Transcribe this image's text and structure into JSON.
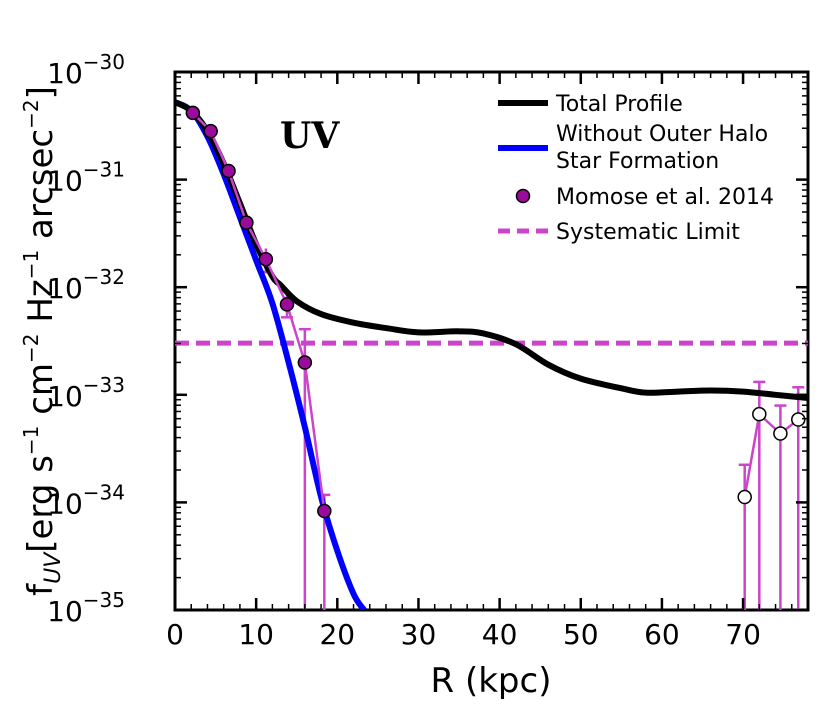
{
  "chart_data": {
    "type": "line",
    "xlabel": "R (kpc)",
    "ylabel_base": "f",
    "ylabel_sub": "UV",
    "ylabel_rest": " [erg s",
    "ylabel_parts": [
      "[erg s",
      "−1",
      " cm",
      "−2",
      " Hz",
      "−1",
      " arcsec",
      "−2",
      "]"
    ],
    "yscale": "log",
    "xlim": [
      0,
      78
    ],
    "ylim_exp": [
      -35,
      -30
    ],
    "x_ticks": [
      "0",
      "10",
      "20",
      "30",
      "40",
      "50",
      "60",
      "70"
    ],
    "x_tick_values": [
      0,
      10,
      20,
      30,
      40,
      50,
      60,
      70
    ],
    "y_ticks": [
      {
        "exp": -30,
        "base": "10",
        "sup": "−30"
      },
      {
        "exp": -31,
        "base": "10",
        "sup": "−31"
      },
      {
        "exp": -32,
        "base": "10",
        "sup": "−32"
      },
      {
        "exp": -33,
        "base": "10",
        "sup": "−33"
      },
      {
        "exp": -34,
        "base": "10",
        "sup": "−34"
      },
      {
        "exp": -35,
        "base": "10",
        "sup": "−35"
      }
    ],
    "annotation": "UV",
    "legend": [
      {
        "label": "Total Profile",
        "style": "line",
        "color": "#000000"
      },
      {
        "label": "Without Outer Halo",
        "label2": "Star Formation",
        "style": "line",
        "color": "#0000ff"
      },
      {
        "label": "Momose et al. 2014",
        "style": "marker",
        "color": "#9b0a9b"
      },
      {
        "label": "Systematic Limit",
        "style": "dashed",
        "color": "#cc44cc"
      }
    ],
    "series": [
      {
        "name": "Total Profile",
        "color": "#000000",
        "x": [
          0,
          2,
          4,
          6,
          8,
          10,
          12,
          13,
          15,
          18,
          22,
          26,
          30,
          35,
          38,
          42,
          46,
          50,
          55,
          58,
          62,
          66,
          70,
          74,
          78
        ],
        "y_exp": [
          -30.28,
          -30.36,
          -30.55,
          -30.85,
          -31.22,
          -31.6,
          -31.9,
          -31.98,
          -32.13,
          -32.25,
          -32.33,
          -32.38,
          -32.42,
          -32.41,
          -32.43,
          -32.53,
          -32.72,
          -32.85,
          -32.94,
          -32.98,
          -32.97,
          -32.96,
          -32.97,
          -33.0,
          -33.03
        ]
      },
      {
        "name": "Without Outer Halo Star Formation",
        "color": "#0000ff",
        "x": [
          0,
          2,
          4,
          6,
          8,
          10,
          12,
          14,
          16,
          18,
          20,
          22,
          23.3
        ],
        "y_exp": [
          -30.28,
          -30.36,
          -30.6,
          -30.95,
          -31.35,
          -31.75,
          -32.15,
          -32.7,
          -33.3,
          -33.95,
          -34.45,
          -34.85,
          -35.0
        ]
      },
      {
        "name": "Momose et al. 2014",
        "color": "#9b0a9b",
        "x": [
          2.2,
          4.4,
          6.6,
          8.8,
          11.2,
          13.8,
          16.0,
          18.4
        ],
        "y_exp": [
          -30.38,
          -30.55,
          -30.92,
          -31.4,
          -31.74,
          -32.16,
          -32.7,
          -34.08
        ],
        "err_low_exp": [
          null,
          null,
          null,
          null,
          -31.64,
          -32.06,
          -35.0,
          -35.0
        ],
        "err_high_exp": [
          null,
          null,
          null,
          null,
          -31.86,
          -32.28,
          -32.39,
          -33.93
        ]
      },
      {
        "name": "outer-points",
        "color": "#ffffff",
        "x": [
          70.2,
          72.0,
          74.6,
          76.8
        ],
        "y_exp": [
          -33.95,
          -33.18,
          -33.36,
          -33.23
        ],
        "err_low_exp": [
          -35.0,
          -35.0,
          -35.0,
          -35.0
        ],
        "err_high_exp": [
          -33.65,
          -32.88,
          -33.1,
          -32.93
        ]
      }
    ],
    "systematic_limit_exp": -32.52,
    "colors": {
      "total": "#000000",
      "halo": "#0000ff",
      "data": "#9b0a9b",
      "error": "#cc44cc",
      "limit": "#cc44cc"
    }
  }
}
